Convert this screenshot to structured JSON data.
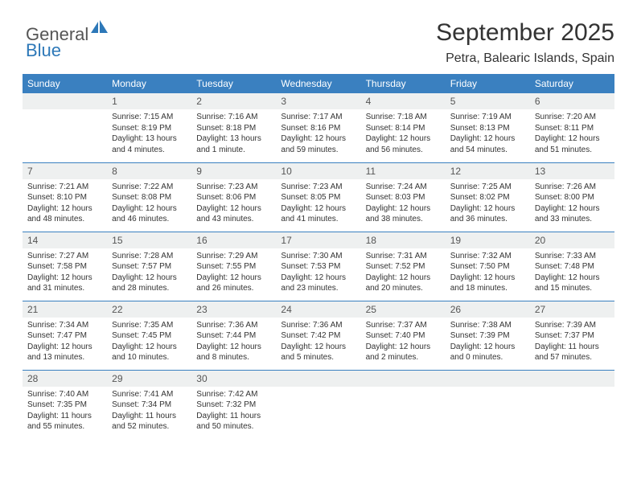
{
  "logo": {
    "part1": "General",
    "part2": "Blue"
  },
  "title": "September 2025",
  "location": "Petra, Balearic Islands, Spain",
  "colors": {
    "header_bg": "#3a80c0",
    "header_text": "#ffffff",
    "daynum_bg": "#eef0f0",
    "border": "#3a80c0",
    "logo_blue": "#2d78b8",
    "text": "#333333"
  },
  "weekdays": [
    "Sunday",
    "Monday",
    "Tuesday",
    "Wednesday",
    "Thursday",
    "Friday",
    "Saturday"
  ],
  "weeks": [
    [
      {
        "num": "",
        "sunrise": "",
        "sunset": "",
        "daylight": ""
      },
      {
        "num": "1",
        "sunrise": "Sunrise: 7:15 AM",
        "sunset": "Sunset: 8:19 PM",
        "daylight": "Daylight: 13 hours and 4 minutes."
      },
      {
        "num": "2",
        "sunrise": "Sunrise: 7:16 AM",
        "sunset": "Sunset: 8:18 PM",
        "daylight": "Daylight: 13 hours and 1 minute."
      },
      {
        "num": "3",
        "sunrise": "Sunrise: 7:17 AM",
        "sunset": "Sunset: 8:16 PM",
        "daylight": "Daylight: 12 hours and 59 minutes."
      },
      {
        "num": "4",
        "sunrise": "Sunrise: 7:18 AM",
        "sunset": "Sunset: 8:14 PM",
        "daylight": "Daylight: 12 hours and 56 minutes."
      },
      {
        "num": "5",
        "sunrise": "Sunrise: 7:19 AM",
        "sunset": "Sunset: 8:13 PM",
        "daylight": "Daylight: 12 hours and 54 minutes."
      },
      {
        "num": "6",
        "sunrise": "Sunrise: 7:20 AM",
        "sunset": "Sunset: 8:11 PM",
        "daylight": "Daylight: 12 hours and 51 minutes."
      }
    ],
    [
      {
        "num": "7",
        "sunrise": "Sunrise: 7:21 AM",
        "sunset": "Sunset: 8:10 PM",
        "daylight": "Daylight: 12 hours and 48 minutes."
      },
      {
        "num": "8",
        "sunrise": "Sunrise: 7:22 AM",
        "sunset": "Sunset: 8:08 PM",
        "daylight": "Daylight: 12 hours and 46 minutes."
      },
      {
        "num": "9",
        "sunrise": "Sunrise: 7:23 AM",
        "sunset": "Sunset: 8:06 PM",
        "daylight": "Daylight: 12 hours and 43 minutes."
      },
      {
        "num": "10",
        "sunrise": "Sunrise: 7:23 AM",
        "sunset": "Sunset: 8:05 PM",
        "daylight": "Daylight: 12 hours and 41 minutes."
      },
      {
        "num": "11",
        "sunrise": "Sunrise: 7:24 AM",
        "sunset": "Sunset: 8:03 PM",
        "daylight": "Daylight: 12 hours and 38 minutes."
      },
      {
        "num": "12",
        "sunrise": "Sunrise: 7:25 AM",
        "sunset": "Sunset: 8:02 PM",
        "daylight": "Daylight: 12 hours and 36 minutes."
      },
      {
        "num": "13",
        "sunrise": "Sunrise: 7:26 AM",
        "sunset": "Sunset: 8:00 PM",
        "daylight": "Daylight: 12 hours and 33 minutes."
      }
    ],
    [
      {
        "num": "14",
        "sunrise": "Sunrise: 7:27 AM",
        "sunset": "Sunset: 7:58 PM",
        "daylight": "Daylight: 12 hours and 31 minutes."
      },
      {
        "num": "15",
        "sunrise": "Sunrise: 7:28 AM",
        "sunset": "Sunset: 7:57 PM",
        "daylight": "Daylight: 12 hours and 28 minutes."
      },
      {
        "num": "16",
        "sunrise": "Sunrise: 7:29 AM",
        "sunset": "Sunset: 7:55 PM",
        "daylight": "Daylight: 12 hours and 26 minutes."
      },
      {
        "num": "17",
        "sunrise": "Sunrise: 7:30 AM",
        "sunset": "Sunset: 7:53 PM",
        "daylight": "Daylight: 12 hours and 23 minutes."
      },
      {
        "num": "18",
        "sunrise": "Sunrise: 7:31 AM",
        "sunset": "Sunset: 7:52 PM",
        "daylight": "Daylight: 12 hours and 20 minutes."
      },
      {
        "num": "19",
        "sunrise": "Sunrise: 7:32 AM",
        "sunset": "Sunset: 7:50 PM",
        "daylight": "Daylight: 12 hours and 18 minutes."
      },
      {
        "num": "20",
        "sunrise": "Sunrise: 7:33 AM",
        "sunset": "Sunset: 7:48 PM",
        "daylight": "Daylight: 12 hours and 15 minutes."
      }
    ],
    [
      {
        "num": "21",
        "sunrise": "Sunrise: 7:34 AM",
        "sunset": "Sunset: 7:47 PM",
        "daylight": "Daylight: 12 hours and 13 minutes."
      },
      {
        "num": "22",
        "sunrise": "Sunrise: 7:35 AM",
        "sunset": "Sunset: 7:45 PM",
        "daylight": "Daylight: 12 hours and 10 minutes."
      },
      {
        "num": "23",
        "sunrise": "Sunrise: 7:36 AM",
        "sunset": "Sunset: 7:44 PM",
        "daylight": "Daylight: 12 hours and 8 minutes."
      },
      {
        "num": "24",
        "sunrise": "Sunrise: 7:36 AM",
        "sunset": "Sunset: 7:42 PM",
        "daylight": "Daylight: 12 hours and 5 minutes."
      },
      {
        "num": "25",
        "sunrise": "Sunrise: 7:37 AM",
        "sunset": "Sunset: 7:40 PM",
        "daylight": "Daylight: 12 hours and 2 minutes."
      },
      {
        "num": "26",
        "sunrise": "Sunrise: 7:38 AM",
        "sunset": "Sunset: 7:39 PM",
        "daylight": "Daylight: 12 hours and 0 minutes."
      },
      {
        "num": "27",
        "sunrise": "Sunrise: 7:39 AM",
        "sunset": "Sunset: 7:37 PM",
        "daylight": "Daylight: 11 hours and 57 minutes."
      }
    ],
    [
      {
        "num": "28",
        "sunrise": "Sunrise: 7:40 AM",
        "sunset": "Sunset: 7:35 PM",
        "daylight": "Daylight: 11 hours and 55 minutes."
      },
      {
        "num": "29",
        "sunrise": "Sunrise: 7:41 AM",
        "sunset": "Sunset: 7:34 PM",
        "daylight": "Daylight: 11 hours and 52 minutes."
      },
      {
        "num": "30",
        "sunrise": "Sunrise: 7:42 AM",
        "sunset": "Sunset: 7:32 PM",
        "daylight": "Daylight: 11 hours and 50 minutes."
      },
      {
        "num": "",
        "sunrise": "",
        "sunset": "",
        "daylight": ""
      },
      {
        "num": "",
        "sunrise": "",
        "sunset": "",
        "daylight": ""
      },
      {
        "num": "",
        "sunrise": "",
        "sunset": "",
        "daylight": ""
      },
      {
        "num": "",
        "sunrise": "",
        "sunset": "",
        "daylight": ""
      }
    ]
  ]
}
